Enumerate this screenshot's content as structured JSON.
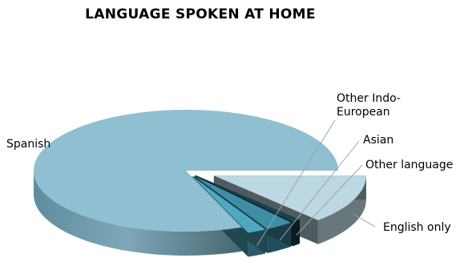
{
  "chart_data": {
    "type": "pie",
    "title": "LANGUAGE SPOKEN AT HOME",
    "style": "3d-exploded",
    "slices": [
      {
        "label": "English only",
        "value": 13,
        "color": "#bcd8e2"
      },
      {
        "label": "Other language",
        "value": 1,
        "color": "#17414f"
      },
      {
        "label": "Asian",
        "value": 3,
        "color": "#3e8ea6"
      },
      {
        "label": "Other Indo-European",
        "value": 2,
        "color": "#4ea8c2"
      },
      {
        "label": "Spanish",
        "value": 81,
        "color": "#90bfd2"
      }
    ]
  }
}
